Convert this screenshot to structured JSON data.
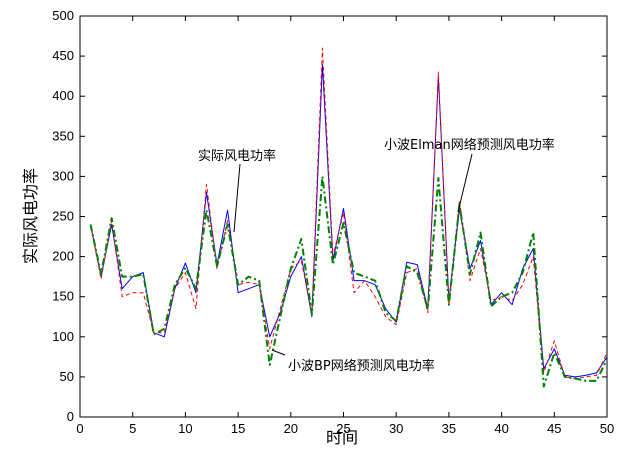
{
  "chart_data": {
    "type": "line",
    "title": "",
    "xlabel": "时间",
    "ylabel": "实际风电功率",
    "xlim": [
      0,
      50
    ],
    "ylim": [
      0,
      500
    ],
    "xticks": [
      0,
      5,
      10,
      15,
      20,
      25,
      30,
      35,
      40,
      45,
      50
    ],
    "yticks": [
      0,
      50,
      100,
      150,
      200,
      250,
      300,
      350,
      400,
      450,
      500
    ],
    "grid": false,
    "legend": "none",
    "x": [
      1,
      2,
      3,
      4,
      5,
      6,
      7,
      8,
      9,
      10,
      11,
      12,
      13,
      14,
      15,
      16,
      17,
      18,
      19,
      20,
      21,
      22,
      23,
      24,
      25,
      26,
      27,
      28,
      29,
      30,
      31,
      32,
      33,
      34,
      35,
      36,
      37,
      38,
      39,
      40,
      41,
      42,
      43,
      44,
      45,
      46,
      47,
      48,
      49,
      50
    ],
    "series": [
      {
        "key": "actual",
        "color": "#0000ff",
        "dash": "none",
        "width": 1,
        "values": [
          240,
          175,
          240,
          160,
          175,
          180,
          105,
          100,
          160,
          192,
          155,
          280,
          190,
          258,
          155,
          160,
          165,
          100,
          130,
          175,
          200,
          125,
          440,
          195,
          260,
          170,
          170,
          165,
          135,
          118,
          193,
          190,
          135,
          425,
          145,
          260,
          185,
          220,
          140,
          155,
          140,
          185,
          210,
          60,
          85,
          52,
          50,
          52,
          55,
          75
        ]
      },
      {
        "key": "elman",
        "color": "#ff0000",
        "dash": "4,3",
        "width": 1,
        "values": [
          240,
          172,
          245,
          150,
          155,
          155,
          105,
          105,
          160,
          180,
          135,
          290,
          185,
          245,
          165,
          168,
          165,
          85,
          135,
          185,
          195,
          130,
          460,
          200,
          255,
          155,
          170,
          150,
          125,
          115,
          180,
          185,
          130,
          430,
          140,
          270,
          170,
          210,
          145,
          150,
          145,
          165,
          200,
          55,
          95,
          50,
          48,
          50,
          52,
          80
        ]
      },
      {
        "key": "bp",
        "color": "#008000",
        "dash": "7,3,2,3",
        "width": 2,
        "values": [
          240,
          178,
          248,
          175,
          175,
          178,
          103,
          110,
          165,
          186,
          160,
          258,
          188,
          240,
          165,
          175,
          170,
          65,
          125,
          185,
          222,
          128,
          300,
          190,
          242,
          180,
          175,
          170,
          130,
          120,
          188,
          180,
          135,
          298,
          140,
          265,
          178,
          230,
          138,
          150,
          155,
          180,
          230,
          38,
          80,
          50,
          48,
          45,
          45,
          72
        ]
      }
    ],
    "annotations": {
      "actual": "实际风电功率",
      "elman": "小波Elman网络预测风电功率",
      "bp": "小波BP网络预测风电功率"
    }
  }
}
